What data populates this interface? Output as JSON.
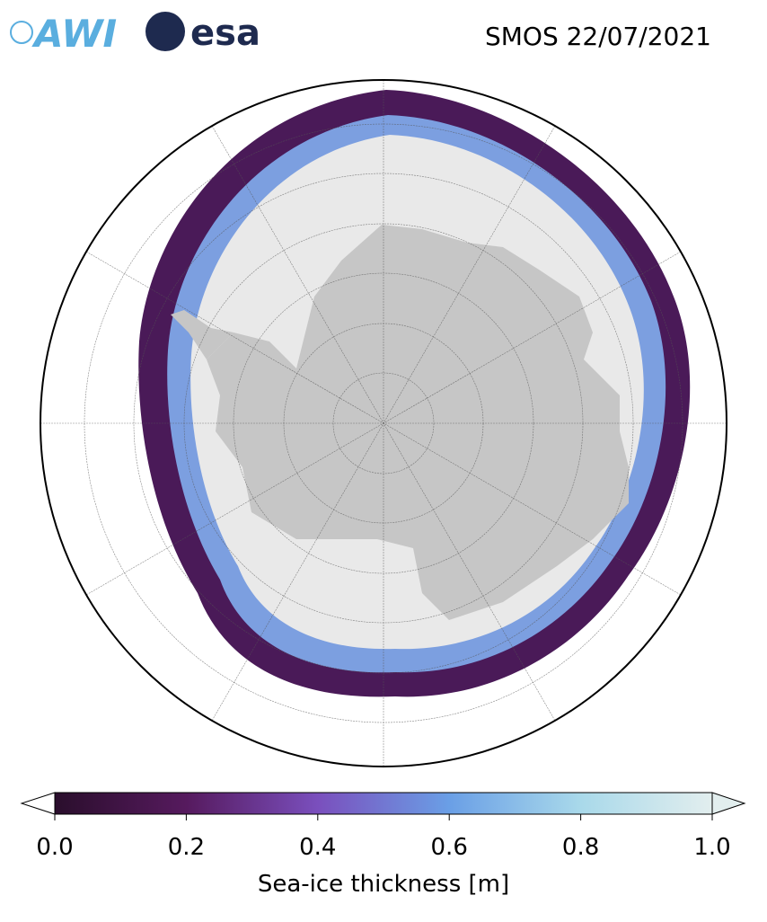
{
  "header": {
    "logos": [
      "AWI",
      "esa"
    ],
    "title": "SMOS 22/07/2021"
  },
  "colorbar": {
    "label": "Sea-ice thickness [m]",
    "clim": [
      0,
      1
    ],
    "ticks": [
      {
        "value": 0,
        "label": "0.0"
      },
      0.2,
      0.4,
      0.6,
      0.8,
      {
        "value": 1,
        "label": "1.0"
      }
    ],
    "colors": [
      "#2a0e2c",
      "#561a5e",
      "#7a4fbd",
      "#6a9fe6",
      "#a9d9ea",
      "#e2eeee"
    ]
  }
}
